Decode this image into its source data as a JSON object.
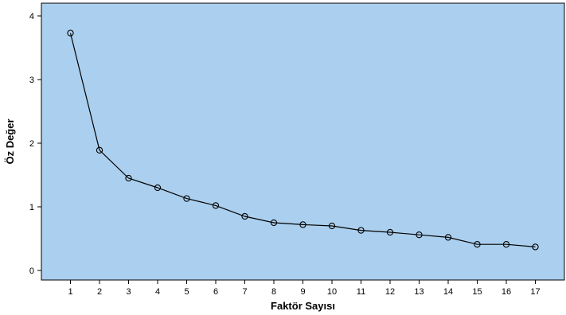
{
  "chart_data": {
    "type": "line",
    "title": "",
    "xlabel": "Faktör Sayısı",
    "ylabel": "Öz Değer",
    "x": [
      1,
      2,
      3,
      4,
      5,
      6,
      7,
      8,
      9,
      10,
      11,
      12,
      13,
      14,
      15,
      16,
      17
    ],
    "x_tick_labels": [
      "1",
      "2",
      "3",
      "4",
      "5",
      "6",
      "7",
      "8",
      "9",
      "10",
      "11",
      "12",
      "13",
      "14",
      "15",
      "16",
      "17"
    ],
    "y_ticks": [
      0,
      1,
      2,
      3,
      4
    ],
    "y_tick_labels": [
      "0",
      "1",
      "2",
      "3",
      "4"
    ],
    "xlim": [
      0,
      18
    ],
    "ylim": [
      -0.15,
      4.2
    ],
    "grid": false,
    "series": [
      {
        "values": [
          3.73,
          1.89,
          1.45,
          1.3,
          1.13,
          1.02,
          0.85,
          0.75,
          0.72,
          0.7,
          0.63,
          0.6,
          0.56,
          0.52,
          0.41,
          0.41,
          0.37
        ],
        "marker": "circle-open"
      }
    ],
    "colors": {
      "plot_background": "#abcfee",
      "line": "#000000"
    }
  }
}
